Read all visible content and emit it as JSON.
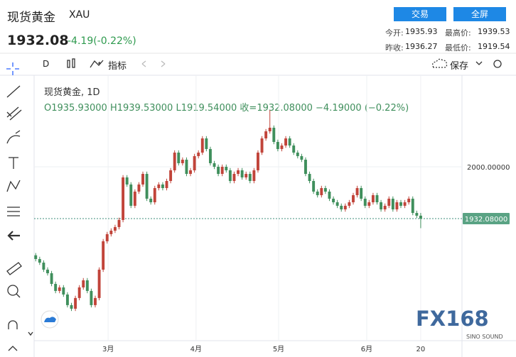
{
  "header": {
    "title": "现货黄金",
    "symbol": "XAU",
    "price": "1932.08",
    "change": "-4.19(-0.22%)",
    "buttons": [
      "交易",
      "全屏"
    ],
    "stats": [
      {
        "label": "今开:",
        "value": "1935.93"
      },
      {
        "label": "最高价:",
        "value": "1939.53"
      },
      {
        "label": "昨收:",
        "value": "1936.27"
      },
      {
        "label": "最低价:",
        "value": "1919.54"
      }
    ]
  },
  "toolbar": {
    "interval": "D",
    "indicators": "指标",
    "save": "保存"
  },
  "legend": {
    "title": "现货黄金, 1D",
    "ohlc": [
      "O1935.93000",
      "H1939.53000",
      "L1919.54000",
      "收=1932.08000",
      "−4.19000 (−0.22%)"
    ]
  },
  "watermark": {
    "logo": "FX168",
    "sub": "SINO SOUND"
  },
  "chart_data": {
    "type": "candlestick",
    "up_color": "#c1443a",
    "down_color": "#3f8f5c",
    "grid": true,
    "ylim": [
      1772.1,
      2125.6
    ],
    "yticks": [
      {
        "value": 2000,
        "label": "2000.00000"
      }
    ],
    "xlim": [
      -0.4,
      107.4
    ],
    "xticks": [
      {
        "value": 18.25,
        "label": "3月"
      },
      {
        "value": 40.4,
        "label": "4月"
      },
      {
        "value": 61.2,
        "label": "5月"
      },
      {
        "value": 83.4,
        "label": "6月"
      },
      {
        "value": 97,
        "label": "20"
      }
    ],
    "last_price": {
      "value": 1932.08,
      "label": "1932.08000"
    },
    "ohlc": [
      [
        1884.0,
        1887.0,
        1876.1,
        1879.1
      ],
      [
        1879.1,
        1882.1,
        1871.4,
        1874.4
      ],
      [
        1874.4,
        1877.4,
        1862.2,
        1865.2
      ],
      [
        1865.2,
        1868.2,
        1857.5,
        1860.5
      ],
      [
        1860.5,
        1863.5,
        1843.5,
        1846.5
      ],
      [
        1846.5,
        1849.5,
        1834.3,
        1837.3
      ],
      [
        1837.3,
        1844.9,
        1834.3,
        1841.9
      ],
      [
        1841.9,
        1844.9,
        1829.6,
        1832.6
      ],
      [
        1832.6,
        1835.6,
        1815.7,
        1818.7
      ],
      [
        1818.7,
        1821.7,
        1811.0,
        1814.0
      ],
      [
        1814.0,
        1831.0,
        1811.0,
        1828.0
      ],
      [
        1828.0,
        1844.9,
        1825.0,
        1841.9
      ],
      [
        1841.9,
        1854.2,
        1838.9,
        1851.2
      ],
      [
        1851.2,
        1854.2,
        1834.3,
        1837.3
      ],
      [
        1837.3,
        1840.3,
        1815.7,
        1818.7
      ],
      [
        1818.7,
        1831.0,
        1815.7,
        1828.0
      ],
      [
        1828.0,
        1868.2,
        1825.0,
        1865.2
      ],
      [
        1865.2,
        1905.4,
        1862.2,
        1902.4
      ],
      [
        1902.4,
        1914.7,
        1899.4,
        1911.7
      ],
      [
        1911.7,
        1919.3,
        1908.7,
        1916.3
      ],
      [
        1916.3,
        1924.0,
        1913.3,
        1921.0
      ],
      [
        1921.0,
        1933.3,
        1918.0,
        1930.3
      ],
      [
        1930.3,
        1989.1,
        1927.3,
        1986.1
      ],
      [
        1986.1,
        1989.1,
        1973.8,
        1976.8
      ],
      [
        1976.8,
        1979.8,
        1945.9,
        1948.9
      ],
      [
        1948.9,
        1970.5,
        1945.9,
        1967.5
      ],
      [
        1967.5,
        1979.8,
        1964.5,
        1976.8
      ],
      [
        1976.8,
        1993.7,
        1973.8,
        1990.7
      ],
      [
        1990.7,
        1993.7,
        1955.2,
        1958.2
      ],
      [
        1958.2,
        1961.2,
        1950.5,
        1953.5
      ],
      [
        1953.5,
        1975.1,
        1950.5,
        1972.1
      ],
      [
        1972.1,
        1979.8,
        1969.1,
        1976.8
      ],
      [
        1976.8,
        1979.8,
        1969.1,
        1972.1
      ],
      [
        1972.1,
        1984.4,
        1969.1,
        1981.4
      ],
      [
        1981.4,
        1998.4,
        1978.4,
        1995.4
      ],
      [
        1995.4,
        2021.6,
        1992.4,
        2018.6
      ],
      [
        2018.6,
        2021.6,
        2001.7,
        2004.7
      ],
      [
        2004.7,
        2012.3,
        2001.7,
        2009.3
      ],
      [
        2009.3,
        2012.3,
        1987.7,
        1990.7
      ],
      [
        1990.7,
        1998.4,
        1987.7,
        1995.4
      ],
      [
        1995.4,
        2017.0,
        1992.4,
        2014.0
      ],
      [
        2014.0,
        2021.6,
        2011.0,
        2018.6
      ],
      [
        2018.6,
        2040.2,
        2015.6,
        2037.2
      ],
      [
        2037.2,
        2040.2,
        2020.3,
        2023.3
      ],
      [
        2023.3,
        2026.3,
        2001.7,
        2004.7
      ],
      [
        2004.7,
        2007.7,
        1997.0,
        2000.0
      ],
      [
        2000.0,
        2003.0,
        1987.7,
        1990.7
      ],
      [
        1990.7,
        2003.0,
        1987.7,
        2000.0
      ],
      [
        2000.0,
        2003.0,
        1992.4,
        1995.4
      ],
      [
        1995.4,
        1998.4,
        1978.4,
        1981.4
      ],
      [
        1981.4,
        1993.7,
        1978.4,
        1990.7
      ],
      [
        1990.7,
        1998.4,
        1987.7,
        1995.4
      ],
      [
        1995.4,
        1998.4,
        1983.1,
        1986.1
      ],
      [
        1986.1,
        1993.7,
        1983.1,
        1990.7
      ],
      [
        1990.7,
        1993.7,
        1978.4,
        1981.4
      ],
      [
        1981.4,
        1998.4,
        1978.4,
        1995.4
      ],
      [
        1995.4,
        2021.6,
        1992.4,
        2018.6
      ],
      [
        2018.6,
        2040.2,
        2015.6,
        2037.2
      ],
      [
        2037.2,
        2049.5,
        2034.2,
        2046.5
      ],
      [
        2046.5,
        2074.4,
        2043.5,
        2051.2
      ],
      [
        2051.2,
        2054.2,
        2029.6,
        2032.6
      ],
      [
        2032.6,
        2035.6,
        2020.3,
        2023.3
      ],
      [
        2023.3,
        2030.9,
        2020.3,
        2027.9
      ],
      [
        2027.9,
        2040.2,
        2024.9,
        2037.2
      ],
      [
        2037.2,
        2040.2,
        2024.9,
        2027.9
      ],
      [
        2027.9,
        2030.9,
        2015.6,
        2018.6
      ],
      [
        2018.6,
        2021.6,
        2011.0,
        2014.0
      ],
      [
        2014.0,
        2017.0,
        2006.3,
        2009.3
      ],
      [
        2009.3,
        2012.3,
        1987.7,
        1990.7
      ],
      [
        1990.7,
        1993.7,
        1978.4,
        1981.4
      ],
      [
        1981.4,
        1984.4,
        1964.5,
        1967.5
      ],
      [
        1967.5,
        1970.5,
        1959.8,
        1962.8
      ],
      [
        1962.8,
        1975.1,
        1959.8,
        1972.1
      ],
      [
        1972.1,
        1975.1,
        1964.5,
        1967.5
      ],
      [
        1967.5,
        1970.5,
        1955.2,
        1958.2
      ],
      [
        1958.2,
        1961.2,
        1950.5,
        1953.5
      ],
      [
        1953.5,
        1956.5,
        1945.9,
        1948.9
      ],
      [
        1948.9,
        1951.9,
        1941.2,
        1944.2
      ],
      [
        1944.2,
        1951.9,
        1941.2,
        1948.9
      ],
      [
        1948.9,
        1956.5,
        1945.9,
        1953.5
      ],
      [
        1953.5,
        1965.8,
        1950.5,
        1962.8
      ],
      [
        1962.8,
        1975.1,
        1959.8,
        1972.1
      ],
      [
        1972.1,
        1975.1,
        1955.2,
        1958.2
      ],
      [
        1958.2,
        1961.2,
        1945.9,
        1948.9
      ],
      [
        1948.9,
        1956.5,
        1945.9,
        1953.5
      ],
      [
        1953.5,
        1965.8,
        1950.5,
        1962.8
      ],
      [
        1962.8,
        1965.8,
        1950.5,
        1953.5
      ],
      [
        1953.5,
        1956.5,
        1941.2,
        1944.2
      ],
      [
        1944.2,
        1951.9,
        1941.2,
        1948.9
      ],
      [
        1948.9,
        1961.2,
        1945.9,
        1958.2
      ],
      [
        1958.2,
        1961.2,
        1941.2,
        1944.2
      ],
      [
        1944.2,
        1956.5,
        1941.2,
        1953.5
      ],
      [
        1953.5,
        1956.5,
        1945.9,
        1948.9
      ],
      [
        1948.9,
        1956.5,
        1945.9,
        1953.5
      ],
      [
        1953.5,
        1961.2,
        1950.5,
        1958.2
      ],
      [
        1958.2,
        1961.2,
        1936.5,
        1939.5
      ],
      [
        1939.5,
        1942.5,
        1932.9,
        1935.9
      ],
      [
        1935.93,
        1939.53,
        1919.54,
        1932.08
      ]
    ]
  }
}
